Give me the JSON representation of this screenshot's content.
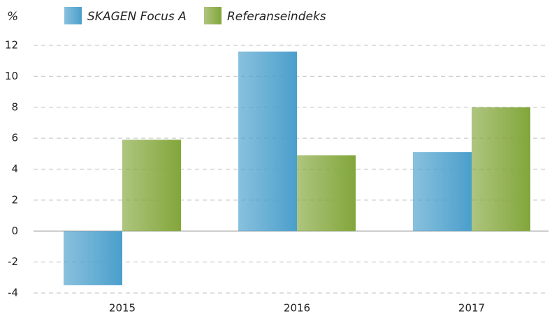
{
  "chart_data": {
    "type": "bar",
    "y_label": "%",
    "categories": [
      "2015",
      "2016",
      "2017"
    ],
    "series": [
      {
        "name": "SKAGEN Focus A",
        "color": "#4a9fcc",
        "values": [
          -3.5,
          11.6,
          5.1
        ]
      },
      {
        "name": "Referanseindeks",
        "color": "#82a63a",
        "values": [
          5.9,
          4.9,
          8.0
        ]
      }
    ],
    "ylim": [
      -4,
      12
    ],
    "yticks": [
      -4,
      -2,
      0,
      2,
      4,
      6,
      8,
      10,
      12
    ],
    "grid": true,
    "legend": "top"
  }
}
